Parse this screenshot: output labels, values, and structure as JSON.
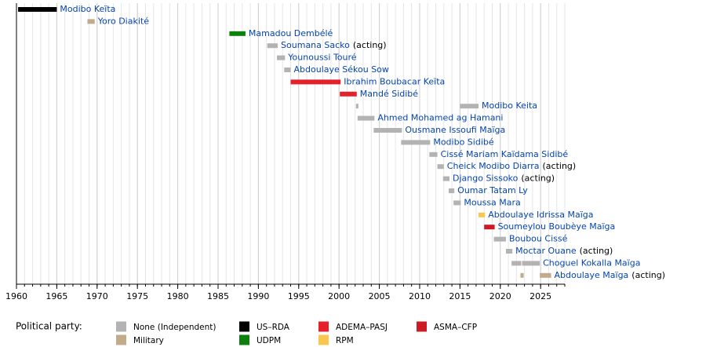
{
  "chart_data": {
    "type": "timeline",
    "xlim": [
      1960,
      2028
    ],
    "xticks": [
      1960,
      1965,
      1970,
      1975,
      1980,
      1985,
      1990,
      1995,
      2000,
      2005,
      2010,
      2015,
      2020,
      2025
    ],
    "grid": true,
    "legend_title": "Political party:",
    "parties": [
      {
        "name": "None (Independent)",
        "color": "#b3b3b3"
      },
      {
        "name": "Military",
        "color": "#c2ab8a"
      },
      {
        "name": "US–RDA",
        "color": "#000000"
      },
      {
        "name": "UDPM",
        "color": "#0c7f0c"
      },
      {
        "name": "ADEMA–PASJ",
        "color": "#e5202a"
      },
      {
        "name": "RPM",
        "color": "#f9c74f"
      },
      {
        "name": "ASMA–CFP",
        "color": "#cc1a26"
      }
    ],
    "rows": [
      {
        "name": "Modibo Keïta",
        "bars": [
          {
            "start": 1960.2,
            "end": 1965.0,
            "party": 2
          }
        ]
      },
      {
        "name": "Yoro Diakité",
        "bars": [
          {
            "start": 1968.8,
            "end": 1969.7,
            "party": 1
          }
        ]
      },
      {
        "name": "Mamadou Dembélé",
        "bars": [
          {
            "start": 1986.4,
            "end": 1988.4,
            "party": 3
          }
        ]
      },
      {
        "name": "Soumana Sacko",
        "note": "(acting)",
        "bars": [
          {
            "start": 1991.1,
            "end": 1992.4,
            "party": 0
          }
        ]
      },
      {
        "name": "Younoussi Touré",
        "bars": [
          {
            "start": 1992.3,
            "end": 1993.3,
            "party": 0
          }
        ]
      },
      {
        "name": "Abdoulaye Sékou Sow",
        "bars": [
          {
            "start": 1993.2,
            "end": 1994.0,
            "party": 0
          }
        ]
      },
      {
        "name": "Ibrahim Boubacar Keïta",
        "bars": [
          {
            "start": 1994.0,
            "end": 2000.2,
            "party": 4
          }
        ]
      },
      {
        "name": "Mandé Sidibé",
        "bars": [
          {
            "start": 2000.1,
            "end": 2002.2,
            "party": 4
          }
        ]
      },
      {
        "name": "Modibo Keita",
        "bars": [
          {
            "start": 2002.1,
            "end": 2002.4,
            "party": 0
          },
          {
            "start": 2015.0,
            "end": 2017.3,
            "party": 0
          }
        ]
      },
      {
        "name": "Ahmed Mohamed ag Hamani",
        "bars": [
          {
            "start": 2002.3,
            "end": 2004.4,
            "party": 0
          }
        ]
      },
      {
        "name": "Ousmane Issoufi Maïga",
        "bars": [
          {
            "start": 2004.3,
            "end": 2007.8,
            "party": 0
          }
        ]
      },
      {
        "name": "Modibo Sidibé",
        "bars": [
          {
            "start": 2007.7,
            "end": 2011.3,
            "party": 0
          }
        ]
      },
      {
        "name": "Cissé Mariam Kaïdama Sidibé",
        "bars": [
          {
            "start": 2011.2,
            "end": 2012.2,
            "party": 0
          }
        ]
      },
      {
        "name": "Cheick Modibo Diarra",
        "note": "(acting)",
        "bars": [
          {
            "start": 2012.2,
            "end": 2013.0,
            "party": 0
          }
        ]
      },
      {
        "name": "Django Sissoko",
        "note": "(acting)",
        "bars": [
          {
            "start": 2012.9,
            "end": 2013.7,
            "party": 0
          }
        ]
      },
      {
        "name": "Oumar Tatam Ly",
        "bars": [
          {
            "start": 2013.6,
            "end": 2014.3,
            "party": 0
          }
        ]
      },
      {
        "name": "Moussa Mara",
        "bars": [
          {
            "start": 2014.2,
            "end": 2015.1,
            "party": 0
          }
        ]
      },
      {
        "name": "Abdoulaye Idrissa Maïga",
        "bars": [
          {
            "start": 2017.3,
            "end": 2018.1,
            "party": 5
          }
        ]
      },
      {
        "name": "Soumeylou Boubèye Maïga",
        "bars": [
          {
            "start": 2018.0,
            "end": 2019.3,
            "party": 6
          }
        ]
      },
      {
        "name": "Boubou Cissé",
        "bars": [
          {
            "start": 2019.2,
            "end": 2020.7,
            "party": 0
          }
        ]
      },
      {
        "name": "Moctar Ouane",
        "note": "(acting)",
        "bars": [
          {
            "start": 2020.7,
            "end": 2021.5,
            "party": 0
          }
        ]
      },
      {
        "name": "Choguel Kokalla Maïga",
        "bars": [
          {
            "start": 2021.4,
            "end": 2022.6,
            "party": 0
          },
          {
            "start": 2022.7,
            "end": 2024.9,
            "party": 0
          }
        ]
      },
      {
        "name": "Abdoulaye Maïga",
        "note": "(acting)",
        "bars": [
          {
            "start": 2022.5,
            "end": 2022.9,
            "party": 1
          },
          {
            "start": 2024.9,
            "end": 2026.3,
            "party": 1
          }
        ]
      }
    ]
  }
}
